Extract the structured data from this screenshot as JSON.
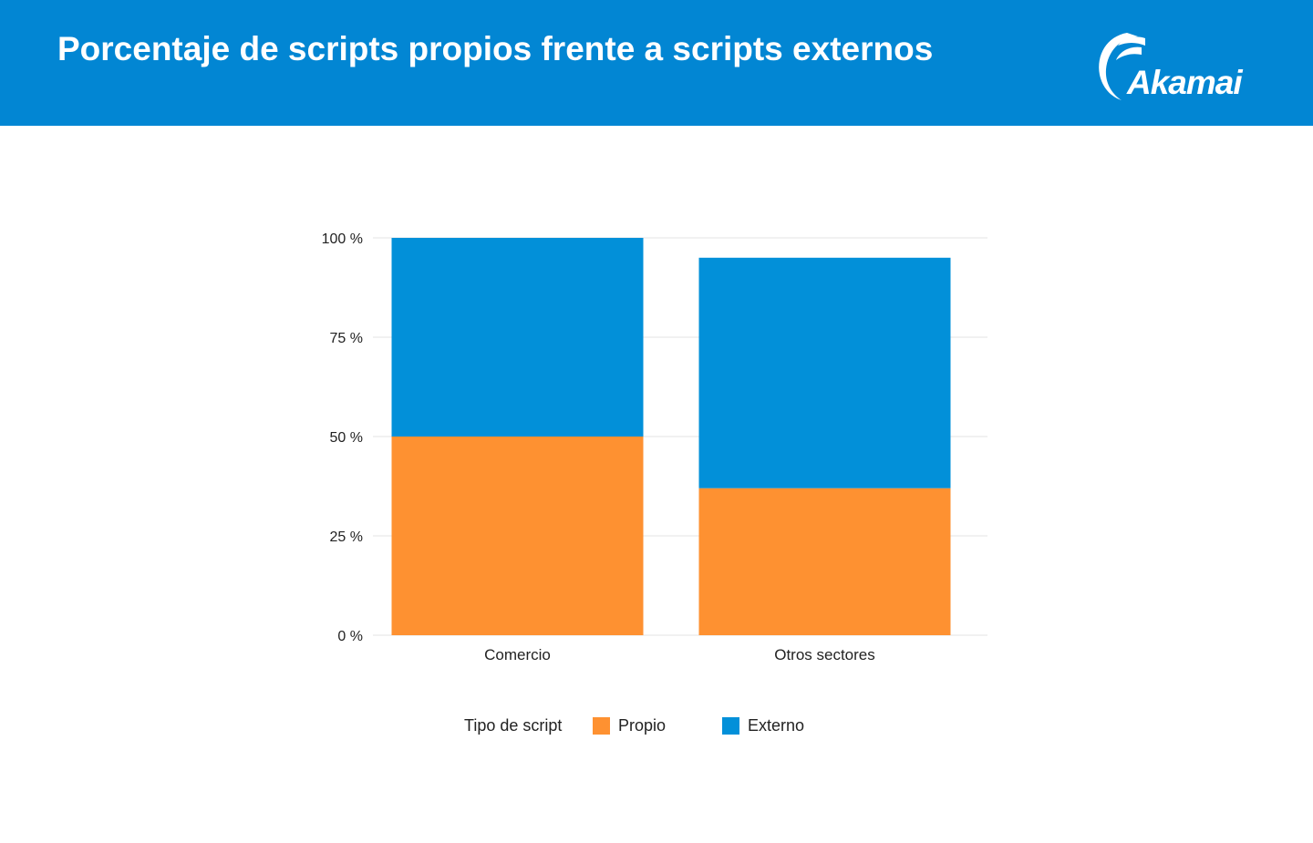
{
  "header": {
    "title": "Porcentaje de scripts propios frente a scripts externos",
    "logo_text": "Akamai",
    "background_color": "#0286d3"
  },
  "chart_data": {
    "type": "bar",
    "stacked": true,
    "categories": [
      "Comercio",
      "Otros sectores"
    ],
    "series": [
      {
        "name": "Propio",
        "values": [
          50,
          37
        ],
        "color": "#fe9131"
      },
      {
        "name": "Externo",
        "values": [
          50,
          58
        ],
        "color": "#0290d9"
      }
    ],
    "ylim": [
      0,
      100
    ],
    "yticks": [
      0,
      25,
      50,
      75,
      100
    ],
    "ytick_labels": [
      "0 %",
      "25 %",
      "50 %",
      "75 %",
      "100 %"
    ],
    "grid": true,
    "legend": {
      "title": "Tipo de script",
      "placement": "bottom"
    }
  }
}
